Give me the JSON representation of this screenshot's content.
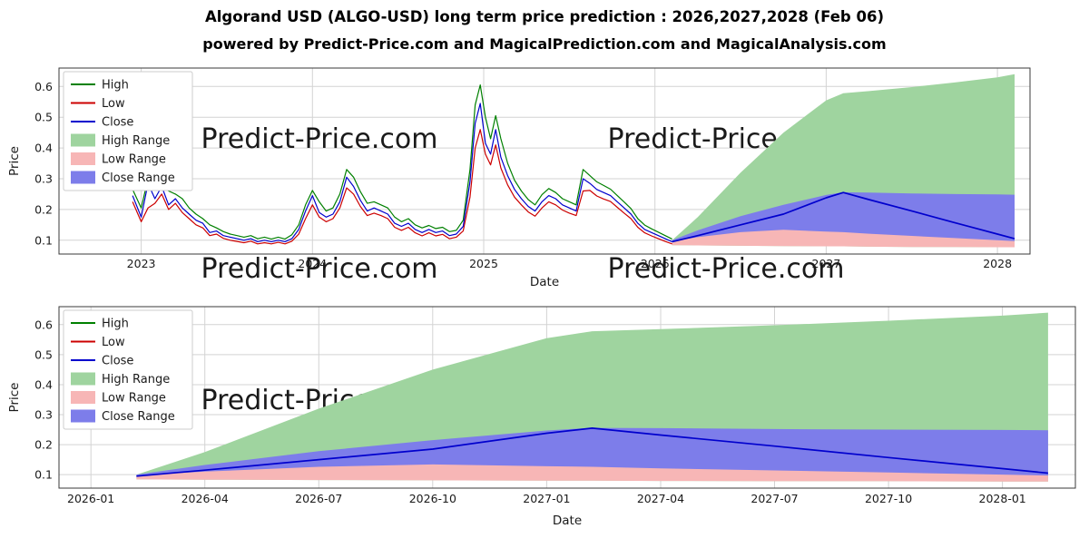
{
  "title": "Algorand USD (ALGO-USD) long term price prediction : 2026,2027,2028 (Feb 06)",
  "subtitle": "powered by Predict-Price.com and MagicalPrediction.com and MagicalAnalysis.com",
  "watermark": "Predict-Price.com",
  "colors": {
    "high_line": "#008000",
    "low_line": "#cc0000",
    "close_line": "#0000cd",
    "high_range": "#9fd49f",
    "low_range": "#f7b6b6",
    "close_range": "#7d7dea",
    "grid": "#d3d3d3",
    "frame": "#3a3a3a",
    "watermark": "#d8d8d8",
    "legend_border": "#cccccc"
  },
  "chart_data": [
    {
      "type": "line",
      "name": "top-chart",
      "title": "",
      "xlabel": "Date",
      "ylabel": "Price",
      "xlim": [
        2022.52,
        2028.19
      ],
      "ylim": [
        0.055,
        0.66
      ],
      "grid": true,
      "legend_position": "upper left",
      "x_ticks": {
        "values": [
          2023,
          2024,
          2025,
          2026,
          2027,
          2028
        ],
        "labels": [
          "2023",
          "2024",
          "2025",
          "2026",
          "2027",
          "2028"
        ]
      },
      "y_ticks": {
        "values": [
          0.1,
          0.2,
          0.3,
          0.4,
          0.5,
          0.6
        ],
        "labels": [
          "0.1",
          "0.2",
          "0.3",
          "0.4",
          "0.5",
          "0.6"
        ]
      },
      "legend": [
        {
          "label": "High",
          "swatch": "line",
          "color": "#008000"
        },
        {
          "label": "Low",
          "swatch": "line",
          "color": "#cc0000"
        },
        {
          "label": "Close",
          "swatch": "line",
          "color": "#0000cd"
        },
        {
          "label": "High Range",
          "swatch": "patch",
          "color": "#9fd49f"
        },
        {
          "label": "Low Range",
          "swatch": "patch",
          "color": "#f7b6b6"
        },
        {
          "label": "Close Range",
          "swatch": "patch",
          "color": "#7d7dea"
        }
      ],
      "historical": {
        "columns": [
          "x",
          "high",
          "low",
          "close"
        ],
        "points": [
          [
            2022.95,
            0.265,
            0.225,
            0.245
          ],
          [
            2023.0,
            0.205,
            0.16,
            0.175
          ],
          [
            2023.04,
            0.3,
            0.205,
            0.285
          ],
          [
            2023.08,
            0.29,
            0.22,
            0.235
          ],
          [
            2023.12,
            0.29,
            0.25,
            0.275
          ],
          [
            2023.16,
            0.26,
            0.2,
            0.215
          ],
          [
            2023.2,
            0.25,
            0.22,
            0.235
          ],
          [
            2023.24,
            0.235,
            0.19,
            0.205
          ],
          [
            2023.28,
            0.205,
            0.17,
            0.185
          ],
          [
            2023.32,
            0.185,
            0.15,
            0.165
          ],
          [
            2023.36,
            0.17,
            0.14,
            0.155
          ],
          [
            2023.4,
            0.15,
            0.115,
            0.125
          ],
          [
            2023.44,
            0.14,
            0.12,
            0.13
          ],
          [
            2023.48,
            0.128,
            0.106,
            0.115
          ],
          [
            2023.52,
            0.12,
            0.1,
            0.11
          ],
          [
            2023.56,
            0.115,
            0.096,
            0.105
          ],
          [
            2023.6,
            0.11,
            0.092,
            0.1
          ],
          [
            2023.64,
            0.115,
            0.097,
            0.105
          ],
          [
            2023.68,
            0.105,
            0.088,
            0.095
          ],
          [
            2023.72,
            0.11,
            0.092,
            0.1
          ],
          [
            2023.76,
            0.104,
            0.088,
            0.095
          ],
          [
            2023.8,
            0.11,
            0.093,
            0.1
          ],
          [
            2023.84,
            0.104,
            0.088,
            0.095
          ],
          [
            2023.88,
            0.118,
            0.097,
            0.105
          ],
          [
            2023.92,
            0.15,
            0.12,
            0.135
          ],
          [
            2023.96,
            0.215,
            0.17,
            0.195
          ],
          [
            2024.0,
            0.262,
            0.215,
            0.245
          ],
          [
            2024.04,
            0.225,
            0.175,
            0.19
          ],
          [
            2024.08,
            0.195,
            0.16,
            0.175
          ],
          [
            2024.12,
            0.205,
            0.17,
            0.185
          ],
          [
            2024.16,
            0.25,
            0.205,
            0.225
          ],
          [
            2024.2,
            0.33,
            0.27,
            0.305
          ],
          [
            2024.24,
            0.305,
            0.25,
            0.275
          ],
          [
            2024.28,
            0.258,
            0.21,
            0.23
          ],
          [
            2024.32,
            0.22,
            0.18,
            0.195
          ],
          [
            2024.36,
            0.225,
            0.188,
            0.205
          ],
          [
            2024.4,
            0.215,
            0.18,
            0.195
          ],
          [
            2024.44,
            0.205,
            0.17,
            0.185
          ],
          [
            2024.48,
            0.175,
            0.142,
            0.155
          ],
          [
            2024.52,
            0.16,
            0.132,
            0.145
          ],
          [
            2024.56,
            0.17,
            0.142,
            0.155
          ],
          [
            2024.6,
            0.15,
            0.124,
            0.135
          ],
          [
            2024.64,
            0.14,
            0.114,
            0.125
          ],
          [
            2024.68,
            0.148,
            0.124,
            0.135
          ],
          [
            2024.72,
            0.138,
            0.114,
            0.125
          ],
          [
            2024.76,
            0.142,
            0.119,
            0.13
          ],
          [
            2024.8,
            0.128,
            0.105,
            0.115
          ],
          [
            2024.84,
            0.132,
            0.11,
            0.12
          ],
          [
            2024.88,
            0.165,
            0.13,
            0.145
          ],
          [
            2024.92,
            0.33,
            0.24,
            0.29
          ],
          [
            2024.95,
            0.54,
            0.4,
            0.48
          ],
          [
            2024.98,
            0.605,
            0.46,
            0.545
          ],
          [
            2025.01,
            0.5,
            0.38,
            0.415
          ],
          [
            2025.04,
            0.43,
            0.345,
            0.38
          ],
          [
            2025.07,
            0.505,
            0.41,
            0.46
          ],
          [
            2025.1,
            0.43,
            0.335,
            0.37
          ],
          [
            2025.14,
            0.35,
            0.28,
            0.31
          ],
          [
            2025.18,
            0.295,
            0.24,
            0.265
          ],
          [
            2025.22,
            0.26,
            0.215,
            0.235
          ],
          [
            2025.26,
            0.232,
            0.192,
            0.21
          ],
          [
            2025.3,
            0.215,
            0.178,
            0.195
          ],
          [
            2025.34,
            0.248,
            0.205,
            0.225
          ],
          [
            2025.38,
            0.268,
            0.225,
            0.245
          ],
          [
            2025.42,
            0.255,
            0.215,
            0.235
          ],
          [
            2025.46,
            0.235,
            0.198,
            0.215
          ],
          [
            2025.5,
            0.225,
            0.188,
            0.205
          ],
          [
            2025.54,
            0.215,
            0.18,
            0.195
          ],
          [
            2025.58,
            0.33,
            0.26,
            0.3
          ],
          [
            2025.62,
            0.31,
            0.262,
            0.285
          ],
          [
            2025.66,
            0.29,
            0.244,
            0.265
          ],
          [
            2025.7,
            0.278,
            0.234,
            0.255
          ],
          [
            2025.74,
            0.266,
            0.226,
            0.245
          ],
          [
            2025.78,
            0.245,
            0.207,
            0.225
          ],
          [
            2025.82,
            0.224,
            0.188,
            0.205
          ],
          [
            2025.86,
            0.203,
            0.17,
            0.185
          ],
          [
            2025.9,
            0.17,
            0.142,
            0.155
          ],
          [
            2025.94,
            0.149,
            0.124,
            0.135
          ],
          [
            2025.98,
            0.137,
            0.114,
            0.125
          ],
          [
            2026.02,
            0.126,
            0.105,
            0.115
          ],
          [
            2026.06,
            0.115,
            0.096,
            0.105
          ],
          [
            2026.1,
            0.104,
            0.088,
            0.095
          ]
        ]
      },
      "forecast": {
        "x": [
          2026.1,
          2026.25,
          2026.5,
          2026.75,
          2027.0,
          2027.1,
          2027.25,
          2027.5,
          2027.75,
          2028.0,
          2028.1
        ],
        "high_top": [
          0.1,
          0.175,
          0.32,
          0.45,
          0.555,
          0.578,
          0.585,
          0.598,
          0.613,
          0.63,
          0.64
        ],
        "close_upper": [
          0.1,
          0.132,
          0.178,
          0.215,
          0.247,
          0.256,
          0.255,
          0.252,
          0.25,
          0.249,
          0.248
        ],
        "close": [
          0.095,
          0.115,
          0.15,
          0.185,
          0.238,
          0.255,
          0.232,
          0.195,
          0.157,
          0.12,
          0.105
        ],
        "close_lower": [
          0.09,
          0.091,
          0.092,
          0.092,
          0.091,
          0.091,
          0.09,
          0.089,
          0.089,
          0.088,
          0.088
        ],
        "low_upper": [
          0.097,
          0.11,
          0.126,
          0.134,
          0.128,
          0.126,
          0.121,
          0.114,
          0.107,
          0.1,
          0.097
        ],
        "low_lower": [
          0.084,
          0.083,
          0.082,
          0.081,
          0.08,
          0.08,
          0.079,
          0.078,
          0.078,
          0.077,
          0.077
        ]
      }
    },
    {
      "type": "area",
      "name": "bottom-chart",
      "title": "",
      "xlabel": "Date",
      "ylabel": "Price",
      "xlim": [
        2025.93,
        2028.16
      ],
      "ylim": [
        0.055,
        0.66
      ],
      "grid": true,
      "legend_position": "upper left",
      "x_ticks": {
        "values": [
          2026.0,
          2026.25,
          2026.5,
          2026.75,
          2027.0,
          2027.25,
          2027.5,
          2027.75,
          2028.0
        ],
        "labels": [
          "2026-01",
          "2026-04",
          "2026-07",
          "2026-10",
          "2027-01",
          "2027-04",
          "2027-07",
          "2027-10",
          "2028-01"
        ]
      },
      "y_ticks": {
        "values": [
          0.1,
          0.2,
          0.3,
          0.4,
          0.5,
          0.6
        ],
        "labels": [
          "0.1",
          "0.2",
          "0.3",
          "0.4",
          "0.5",
          "0.6"
        ]
      },
      "legend": [
        {
          "label": "High",
          "swatch": "line",
          "color": "#008000"
        },
        {
          "label": "Low",
          "swatch": "line",
          "color": "#cc0000"
        },
        {
          "label": "Close",
          "swatch": "line",
          "color": "#0000cd"
        },
        {
          "label": "High Range",
          "swatch": "patch",
          "color": "#9fd49f"
        },
        {
          "label": "Low Range",
          "swatch": "patch",
          "color": "#f7b6b6"
        },
        {
          "label": "Close Range",
          "swatch": "patch",
          "color": "#7d7dea"
        }
      ],
      "forecast": {
        "x": [
          2026.1,
          2026.25,
          2026.5,
          2026.75,
          2027.0,
          2027.1,
          2027.25,
          2027.5,
          2027.75,
          2028.0,
          2028.1
        ],
        "high_top": [
          0.1,
          0.175,
          0.32,
          0.45,
          0.555,
          0.578,
          0.585,
          0.598,
          0.613,
          0.63,
          0.64
        ],
        "close_upper": [
          0.1,
          0.132,
          0.178,
          0.215,
          0.247,
          0.256,
          0.255,
          0.252,
          0.25,
          0.249,
          0.248
        ],
        "close": [
          0.095,
          0.115,
          0.15,
          0.185,
          0.238,
          0.255,
          0.232,
          0.195,
          0.157,
          0.12,
          0.105
        ],
        "close_lower": [
          0.09,
          0.091,
          0.092,
          0.092,
          0.091,
          0.091,
          0.09,
          0.089,
          0.089,
          0.088,
          0.088
        ],
        "low_upper": [
          0.097,
          0.11,
          0.126,
          0.134,
          0.128,
          0.126,
          0.121,
          0.114,
          0.107,
          0.1,
          0.097
        ],
        "low_lower": [
          0.084,
          0.083,
          0.082,
          0.081,
          0.08,
          0.08,
          0.079,
          0.078,
          0.078,
          0.077,
          0.077
        ]
      }
    }
  ]
}
